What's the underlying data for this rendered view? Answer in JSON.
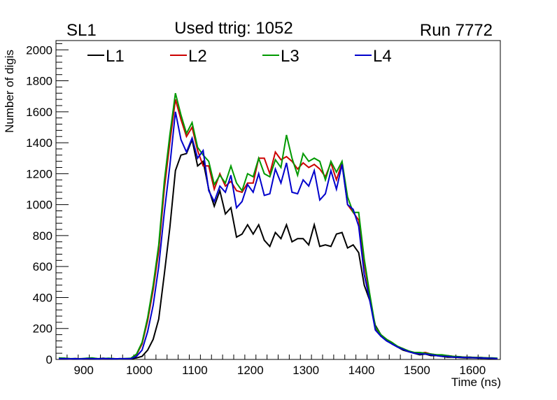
{
  "chart_data": {
    "type": "line",
    "title": "Used ttrig: 1052",
    "left_label": "SL1",
    "right_label": "Run 7772",
    "xlabel": "Time (ns)",
    "ylabel": "Number of digis",
    "xlim": [
      850,
      1650
    ],
    "ylim": [
      0,
      2060
    ],
    "x_start": 855,
    "x_step": 10,
    "xticks": [
      900,
      1000,
      1100,
      1200,
      1300,
      1400,
      1500,
      1600
    ],
    "yticks": [
      0,
      200,
      400,
      600,
      800,
      1000,
      1200,
      1400,
      1600,
      1800,
      2000
    ],
    "legend_position": "top",
    "series": [
      {
        "name": "L1",
        "color": "#000000",
        "values": [
          5,
          8,
          5,
          3,
          5,
          6,
          5,
          4,
          8,
          5,
          3,
          5,
          4,
          5,
          10,
          20,
          60,
          130,
          260,
          550,
          850,
          1220,
          1320,
          1330,
          1420,
          1250,
          1280,
          1100,
          990,
          1090,
          940,
          980,
          790,
          810,
          870,
          810,
          870,
          770,
          730,
          820,
          780,
          870,
          760,
          780,
          780,
          740,
          870,
          730,
          740,
          730,
          810,
          820,
          720,
          740,
          690,
          480,
          380,
          220,
          160,
          130,
          100,
          80,
          60,
          50,
          40,
          30,
          35,
          25,
          25,
          20,
          15,
          15,
          12,
          10,
          10,
          10,
          8,
          8,
          5,
          5
        ]
      },
      {
        "name": "L2",
        "color": "#cc0000",
        "values": [
          5,
          5,
          3,
          6,
          4,
          5,
          8,
          5,
          4,
          6,
          5,
          4,
          5,
          5,
          30,
          100,
          250,
          450,
          700,
          1100,
          1400,
          1680,
          1550,
          1440,
          1500,
          1350,
          1250,
          1250,
          1100,
          1200,
          1120,
          1150,
          1090,
          1080,
          1140,
          1140,
          1300,
          1300,
          1200,
          1340,
          1290,
          1310,
          1280,
          1230,
          1270,
          1240,
          1260,
          1230,
          1180,
          1270,
          1160,
          1270,
          1000,
          950,
          900,
          620,
          400,
          200,
          150,
          130,
          110,
          80,
          70,
          50,
          45,
          40,
          45,
          35,
          30,
          25,
          25,
          20,
          18,
          15,
          15,
          12,
          12,
          10,
          8,
          6
        ]
      },
      {
        "name": "L3",
        "color": "#009900",
        "values": [
          10,
          8,
          5,
          6,
          4,
          8,
          10,
          5,
          6,
          8,
          5,
          4,
          6,
          8,
          35,
          110,
          270,
          480,
          740,
          1150,
          1450,
          1720,
          1580,
          1460,
          1530,
          1370,
          1320,
          1280,
          1130,
          1190,
          1140,
          1250,
          1140,
          1090,
          1200,
          1180,
          1300,
          1200,
          1180,
          1290,
          1240,
          1450,
          1300,
          1190,
          1330,
          1280,
          1300,
          1280,
          1160,
          1280,
          1210,
          1280,
          1050,
          950,
          950,
          650,
          420,
          210,
          160,
          130,
          110,
          85,
          70,
          55,
          45,
          45,
          40,
          35,
          30,
          30,
          25,
          20,
          18,
          15,
          15,
          12,
          12,
          10,
          10,
          8
        ]
      },
      {
        "name": "L4",
        "color": "#0000cc",
        "values": [
          5,
          5,
          4,
          5,
          3,
          6,
          5,
          4,
          6,
          5,
          4,
          5,
          5,
          5,
          20,
          60,
          180,
          350,
          600,
          950,
          1250,
          1600,
          1420,
          1340,
          1430,
          1300,
          1350,
          1090,
          1020,
          1120,
          1080,
          1190,
          980,
          1020,
          1130,
          1080,
          1200,
          1060,
          1070,
          1230,
          1140,
          1270,
          1080,
          1070,
          1160,
          1120,
          1220,
          1030,
          1070,
          1220,
          1100,
          1260,
          1000,
          970,
          860,
          550,
          380,
          190,
          150,
          120,
          100,
          80,
          65,
          50,
          40,
          35,
          35,
          30,
          25,
          20,
          20,
          15,
          15,
          12,
          12,
          10,
          10,
          8,
          8,
          5
        ]
      }
    ]
  }
}
